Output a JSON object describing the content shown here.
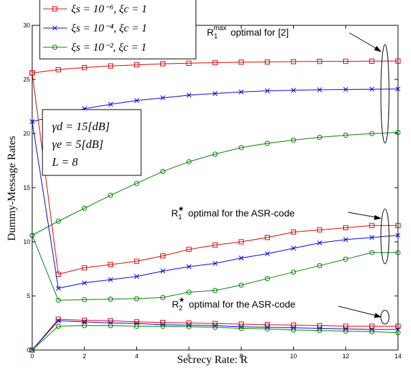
{
  "chart_data": {
    "type": "line",
    "xlabel": "Secrecy Rate: R",
    "ylabel": "Dummy-Message Rates",
    "xlim": [
      0,
      14
    ],
    "ylim": [
      0,
      30
    ],
    "x_ticks": [
      0,
      2,
      4,
      6,
      8,
      10,
      12,
      14
    ],
    "y_ticks": [
      0,
      5,
      10,
      15,
      20,
      25,
      30
    ],
    "grid": false,
    "legend_position": "top-left",
    "series": [
      {
        "name": "ξs = 10⁻⁶, ξc = 1",
        "color": "#e00000",
        "marker": "square",
        "group": "R1max",
        "x": [
          0,
          1,
          2,
          3,
          4,
          5,
          6,
          7,
          8,
          9,
          10,
          11,
          12,
          13,
          14
        ],
        "y": [
          25.6,
          25.9,
          26.1,
          26.25,
          26.35,
          26.45,
          26.5,
          26.55,
          26.6,
          26.62,
          26.65,
          26.67,
          26.68,
          26.69,
          26.7
        ]
      },
      {
        "name": "ξs = 10⁻⁴, ξc = 1",
        "color": "#0000e0",
        "marker": "x",
        "group": "R1max",
        "x": [
          0,
          1,
          2,
          3,
          4,
          5,
          6,
          7,
          8,
          9,
          10,
          11,
          12,
          13,
          14
        ],
        "y": [
          21.1,
          21.7,
          22.3,
          22.7,
          23.05,
          23.3,
          23.55,
          23.7,
          23.85,
          23.95,
          24.0,
          24.05,
          24.08,
          24.1,
          24.12
        ]
      },
      {
        "name": "ξs = 10⁻², ξc = 1",
        "color": "#008000",
        "marker": "circle",
        "group": "R1max",
        "x": [
          0,
          1,
          2,
          3,
          4,
          5,
          6,
          7,
          8,
          9,
          10,
          11,
          12,
          13,
          14
        ],
        "y": [
          10.6,
          11.9,
          13.1,
          14.3,
          15.4,
          16.5,
          17.4,
          18.1,
          18.7,
          19.1,
          19.4,
          19.65,
          19.85,
          20.0,
          20.1
        ]
      },
      {
        "name": "",
        "color": "#e00000",
        "marker": "square",
        "group": "R1star",
        "x": [
          0,
          1,
          2,
          3,
          4,
          5,
          6,
          7,
          8,
          9,
          10,
          11,
          12,
          13,
          14
        ],
        "y": [
          25.6,
          7.0,
          7.6,
          7.9,
          8.2,
          8.7,
          9.3,
          9.7,
          10.0,
          10.4,
          10.9,
          11.1,
          11.3,
          11.5,
          11.5
        ]
      },
      {
        "name": "",
        "color": "#0000e0",
        "marker": "x",
        "group": "R1star",
        "x": [
          0,
          1,
          2,
          3,
          4,
          5,
          6,
          7,
          8,
          9,
          10,
          11,
          12,
          13,
          14
        ],
        "y": [
          21.1,
          5.7,
          6.2,
          6.5,
          6.8,
          7.3,
          7.7,
          8.0,
          8.5,
          8.9,
          9.4,
          9.9,
          10.2,
          10.4,
          10.6
        ]
      },
      {
        "name": "",
        "color": "#008000",
        "marker": "circle",
        "group": "R1star",
        "x": [
          0,
          1,
          2,
          3,
          4,
          5,
          6,
          7,
          8,
          9,
          10,
          11,
          12,
          13,
          14
        ],
        "y": [
          10.6,
          4.6,
          4.65,
          4.7,
          4.75,
          4.85,
          5.35,
          5.5,
          6.0,
          6.6,
          7.2,
          7.8,
          8.4,
          9.0,
          9.0
        ]
      },
      {
        "name": "",
        "color": "#e00000",
        "marker": "square",
        "group": "R2star",
        "x": [
          0,
          1,
          2,
          3,
          4,
          5,
          6,
          7,
          8,
          9,
          10,
          11,
          12,
          13,
          14
        ],
        "y": [
          0,
          2.85,
          2.75,
          2.7,
          2.6,
          2.55,
          2.5,
          2.45,
          2.4,
          2.35,
          2.3,
          2.25,
          2.2,
          2.2,
          2.2
        ]
      },
      {
        "name": "",
        "color": "#0000e0",
        "marker": "x",
        "group": "R2star",
        "x": [
          0,
          1,
          2,
          3,
          4,
          5,
          6,
          7,
          8,
          9,
          10,
          11,
          12,
          13,
          14
        ],
        "y": [
          0,
          2.7,
          2.6,
          2.5,
          2.45,
          2.35,
          2.3,
          2.25,
          2.15,
          2.1,
          2.05,
          2.0,
          1.95,
          1.9,
          1.9
        ]
      },
      {
        "name": "",
        "color": "#008000",
        "marker": "circle",
        "group": "R2star",
        "x": [
          0,
          1,
          2,
          3,
          4,
          5,
          6,
          7,
          8,
          9,
          10,
          11,
          12,
          13,
          14
        ],
        "y": [
          0,
          2.2,
          2.25,
          2.25,
          2.2,
          2.2,
          2.15,
          2.1,
          2.0,
          1.95,
          1.85,
          1.8,
          1.75,
          1.7,
          1.6
        ]
      }
    ],
    "parameter_box": [
      "γd = 15[dB]",
      "γe = 5[dB]",
      "L = 8"
    ],
    "annotations": [
      {
        "text": "R1max optimal for [2]",
        "points_to_x": 13.5,
        "points_to_y": 26.5
      },
      {
        "text": "R1★ optimal for the ASR-code",
        "points_to_x": 13.5,
        "points_to_y": 11.2
      },
      {
        "text": "R2★ optimal for the ASR-code",
        "points_to_x": 13.5,
        "points_to_y": 2.1
      }
    ]
  }
}
